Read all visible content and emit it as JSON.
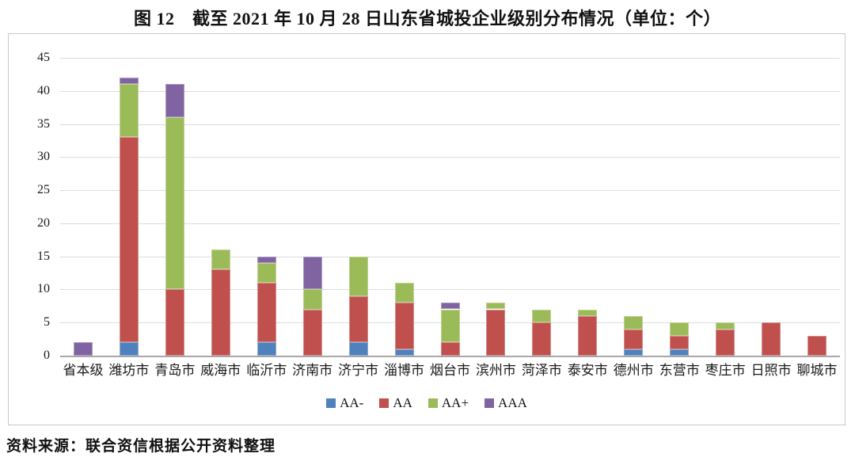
{
  "title": "图 12　截至 2021 年 10 月 28 日山东省城投企业级别分布情况（单位：个）",
  "footer": "资料来源：联合资信根据公开资料整理",
  "chart_data": {
    "type": "bar",
    "stacked": true,
    "title": "截至2021年10月28日山东省城投企业级别分布情况（单位：个）",
    "xlabel": "",
    "ylabel": "",
    "ylim": [
      0,
      45
    ],
    "y_ticks": [
      0,
      5,
      10,
      15,
      20,
      25,
      30,
      35,
      40,
      45
    ],
    "grid": true,
    "legend_position": "bottom",
    "categories": [
      "省本级",
      "潍坊市",
      "青岛市",
      "威海市",
      "临沂市",
      "济南市",
      "济宁市",
      "淄博市",
      "烟台市",
      "滨州市",
      "菏泽市",
      "泰安市",
      "德州市",
      "东营市",
      "枣庄市",
      "日照市",
      "聊城市"
    ],
    "series": [
      {
        "name": "AA-",
        "color": "#4F81BD",
        "values": [
          0,
          2,
          0,
          0,
          2,
          0,
          2,
          1,
          0,
          0,
          0,
          0,
          1,
          1,
          0,
          0,
          0
        ]
      },
      {
        "name": "AA",
        "color": "#C0504D",
        "values": [
          0,
          31,
          10,
          13,
          9,
          7,
          7,
          7,
          2,
          7,
          5,
          6,
          3,
          2,
          4,
          5,
          3
        ]
      },
      {
        "name": "AA+",
        "color": "#9BBB59",
        "values": [
          0,
          8,
          26,
          3,
          3,
          3,
          6,
          3,
          5,
          1,
          2,
          1,
          2,
          2,
          1,
          0,
          0
        ]
      },
      {
        "name": "AAA",
        "color": "#8064A2",
        "values": [
          2,
          1,
          5,
          0,
          1,
          5,
          0,
          0,
          1,
          0,
          0,
          0,
          0,
          0,
          0,
          0,
          0
        ]
      }
    ],
    "colors": {
      "gridline": "#dcdcdc",
      "zero_axis": "#a8a8a8",
      "box_border": "#c9c9c9",
      "text": "#1a1a1a"
    }
  }
}
